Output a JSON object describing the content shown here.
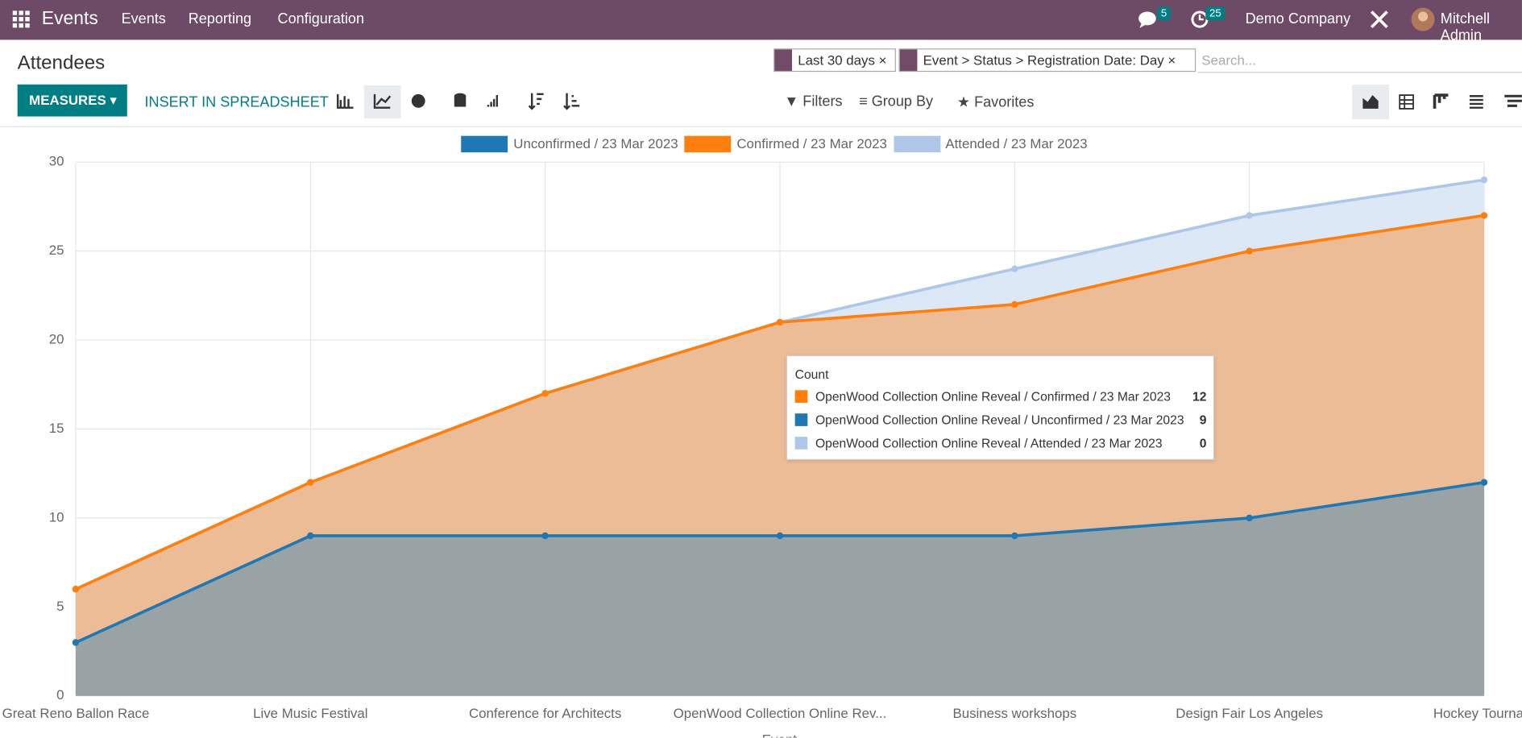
{
  "navbar": {
    "app": "Events",
    "menu": [
      "Events",
      "Reporting",
      "Configuration"
    ],
    "messages": 5,
    "activities": 25,
    "company": "Demo Company",
    "user": "Mitchell Admin"
  },
  "control_panel": {
    "title": "Attendees",
    "measures": "MEASURES",
    "insert": "INSERT IN SPREADSHEET",
    "facets": [
      "Last 30 days",
      "Event > Status > Registration Date: Day"
    ],
    "search_placeholder": "Search...",
    "filters": "Filters",
    "group_by": "Group By",
    "favorites": "Favorites"
  },
  "chart_data": {
    "type": "area",
    "stacked": true,
    "xlabel": "Event",
    "categories": [
      "Great Reno Ballon Race",
      "Live Music Festival",
      "Conference for Architects",
      "OpenWood Collection Online Rev...",
      "Business workshops",
      "Design Fair Los Angeles",
      "Hockey Tournam"
    ],
    "series": [
      {
        "name": "Unconfirmed / 23 Mar 2023",
        "color": "#1f77b4",
        "fill": "#99a3a5",
        "values": [
          3,
          9,
          9,
          9,
          9,
          10,
          12
        ]
      },
      {
        "name": "Confirmed / 23 Mar 2023",
        "color": "#ff7f0e",
        "fill": "#ecbc96",
        "values": [
          3,
          3,
          8,
          12,
          13,
          15,
          15
        ]
      },
      {
        "name": "Attended / 23 Mar 2023",
        "color": "#aec7e8",
        "fill": "#dde8f6",
        "values": [
          0,
          0,
          0,
          0,
          2,
          2,
          2
        ]
      }
    ],
    "ylim": [
      0,
      30
    ],
    "yticks": [
      0,
      5,
      10,
      15,
      20,
      25,
      30
    ],
    "grid": true,
    "legend": "top",
    "tooltip": {
      "title": "Count",
      "rows": [
        {
          "label": "OpenWood Collection Online Reveal / Confirmed / 23 Mar 2023",
          "value": 12,
          "color": "#ff7f0e"
        },
        {
          "label": "OpenWood Collection Online Reveal / Unconfirmed / 23 Mar 2023",
          "value": 9,
          "color": "#1f77b4"
        },
        {
          "label": "OpenWood Collection Online Reveal / Attended / 23 Mar 2023",
          "value": 0,
          "color": "#aec7e8"
        }
      ]
    }
  }
}
